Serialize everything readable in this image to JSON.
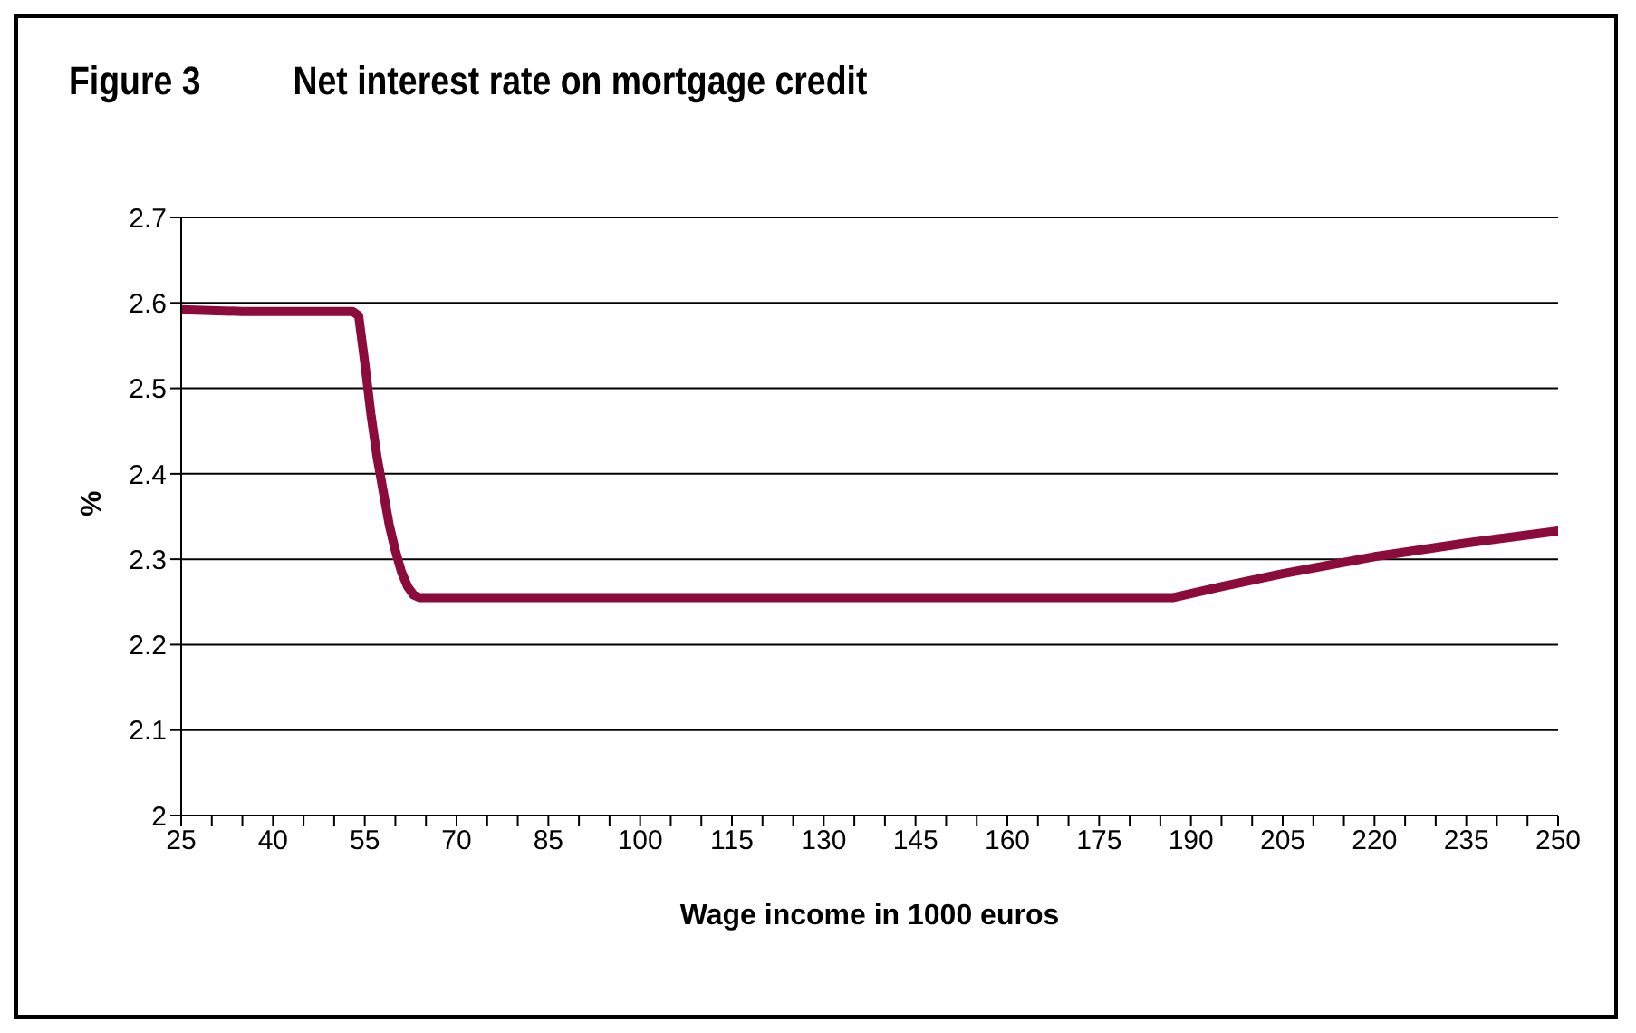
{
  "chart_data": {
    "type": "line",
    "title": "Figure 3",
    "subtitle": "Net interest rate on mortgage credit",
    "xlabel": "Wage income in 1000 euros",
    "ylabel": "%",
    "series": [
      {
        "color": "#8b0b3b",
        "x": [
          25,
          35,
          45,
          53,
          54,
          55,
          56,
          57,
          58,
          59,
          60,
          61,
          62,
          63,
          64,
          65,
          100,
          150,
          187,
          195,
          205,
          220,
          235,
          250
        ],
        "values": [
          2.592,
          2.59,
          2.59,
          2.59,
          2.585,
          2.53,
          2.47,
          2.42,
          2.38,
          2.34,
          2.31,
          2.285,
          2.268,
          2.258,
          2.255,
          2.255,
          2.255,
          2.255,
          2.255,
          2.268,
          2.283,
          2.303,
          2.319,
          2.333
        ]
      }
    ],
    "xlim": [
      25,
      250
    ],
    "xticks": [
      25,
      {
        "value": 30,
        "label": null
      },
      {
        "value": 35,
        "label": null
      },
      40,
      {
        "value": 45,
        "label": null
      },
      {
        "value": 50,
        "label": null
      },
      55,
      {
        "value": 60,
        "label": null
      },
      {
        "value": 65,
        "label": null
      },
      70,
      {
        "value": 75,
        "label": null
      },
      {
        "value": 80,
        "label": null
      },
      85,
      {
        "value": 90,
        "label": null
      },
      {
        "value": 95,
        "label": null
      },
      100,
      {
        "value": 105,
        "label": null
      },
      {
        "value": 110,
        "label": null
      },
      115,
      {
        "value": 120,
        "label": null
      },
      {
        "value": 125,
        "label": null
      },
      130,
      {
        "value": 135,
        "label": null
      },
      {
        "value": 140,
        "label": null
      },
      145,
      {
        "value": 150,
        "label": null
      },
      {
        "value": 155,
        "label": null
      },
      160,
      {
        "value": 165,
        "label": null
      },
      {
        "value": 170,
        "label": null
      },
      175,
      {
        "value": 180,
        "label": null
      },
      {
        "value": 185,
        "label": null
      },
      190,
      {
        "value": 195,
        "label": null
      },
      {
        "value": 200,
        "label": null
      },
      205,
      {
        "value": 210,
        "label": null
      },
      {
        "value": 215,
        "label": null
      },
      220,
      {
        "value": 225,
        "label": null
      },
      {
        "value": 230,
        "label": null
      },
      235,
      {
        "value": 240,
        "label": null
      },
      {
        "value": 245,
        "label": null
      },
      250
    ],
    "ylim": [
      2,
      2.7
    ],
    "yticks": [
      2,
      2.1,
      2.2,
      2.3,
      2.4,
      2.5,
      2.6,
      2.7
    ],
    "grid": "y",
    "legend": false,
    "marker": "none",
    "line_style": "solid"
  }
}
